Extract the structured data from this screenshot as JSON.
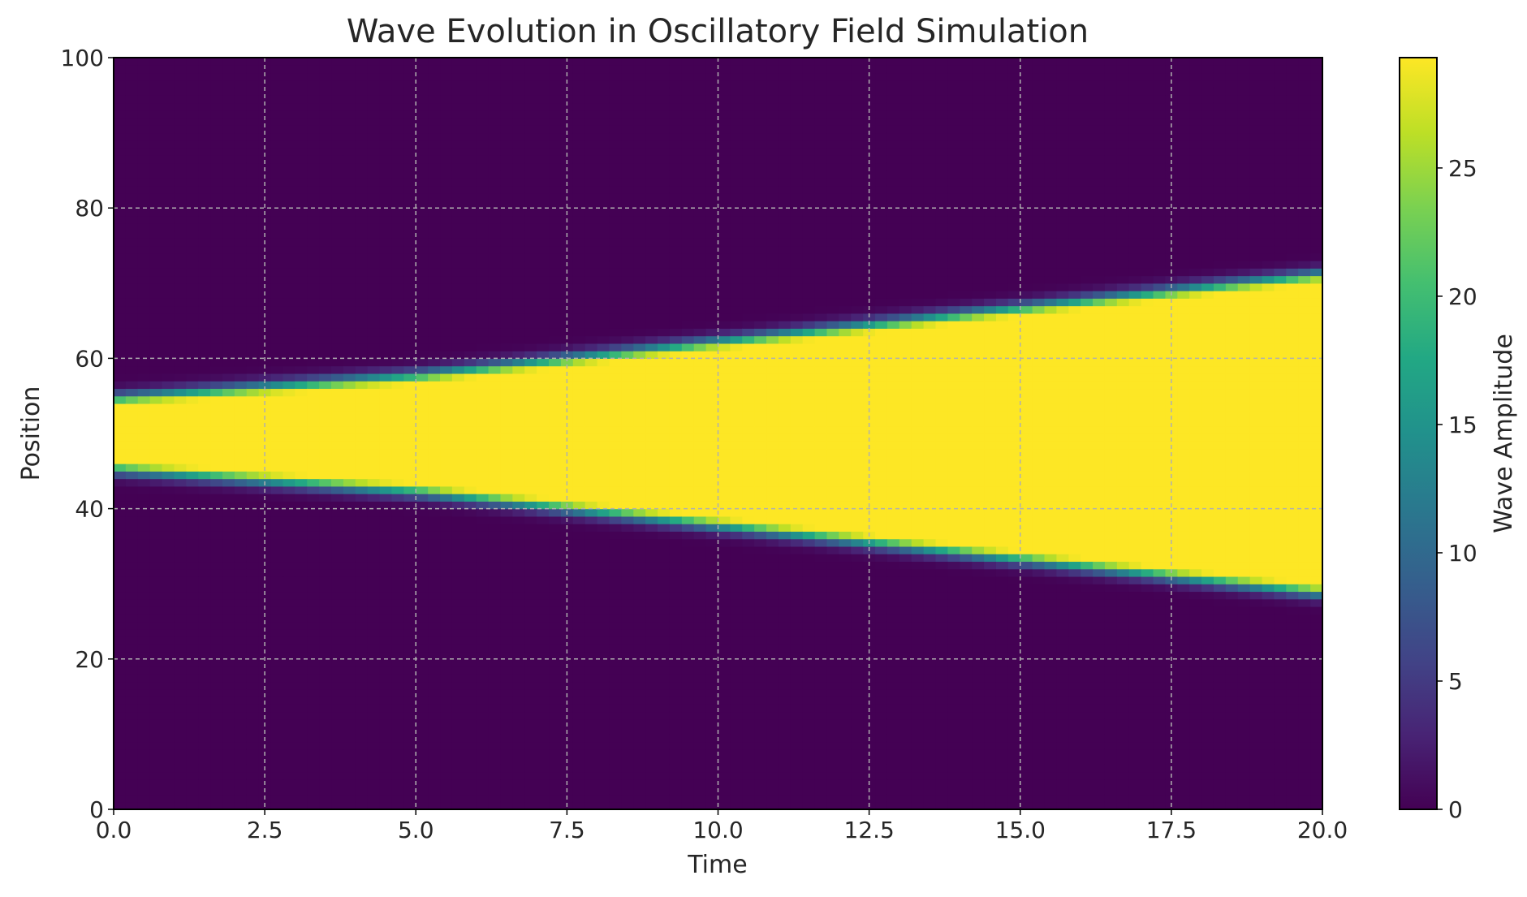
{
  "chart_data": {
    "type": "heatmap",
    "title": "Wave Evolution in Oscillatory Field Simulation",
    "xlabel": "Time",
    "ylabel": "Position",
    "xlim": [
      0,
      20
    ],
    "ylim": [
      0,
      100
    ],
    "x_ticks": [
      "0.0",
      "2.5",
      "5.0",
      "7.5",
      "10.0",
      "12.5",
      "15.0",
      "17.5",
      "20.0"
    ],
    "y_ticks": [
      "0",
      "20",
      "40",
      "60",
      "80",
      "100"
    ],
    "grid": true,
    "colormap": "viridis",
    "colorbar": {
      "label": "Wave Amplitude",
      "range": [
        0,
        29.3
      ],
      "ticks": [
        "0",
        "5",
        "10",
        "15",
        "20",
        "25"
      ]
    },
    "field": {
      "description_of_values": "amplitude as function of time and position",
      "center_position": 50,
      "half_width_at_time": [
        {
          "time": 0,
          "half_width": 3.5
        },
        {
          "time": 5,
          "half_width": 6.5
        },
        {
          "time": 10,
          "half_width": 11
        },
        {
          "time": 15,
          "half_width": 15.5
        },
        {
          "time": 20,
          "half_width": 20
        }
      ],
      "peak_amplitude": 29.3,
      "background_amplitude": 0
    }
  }
}
